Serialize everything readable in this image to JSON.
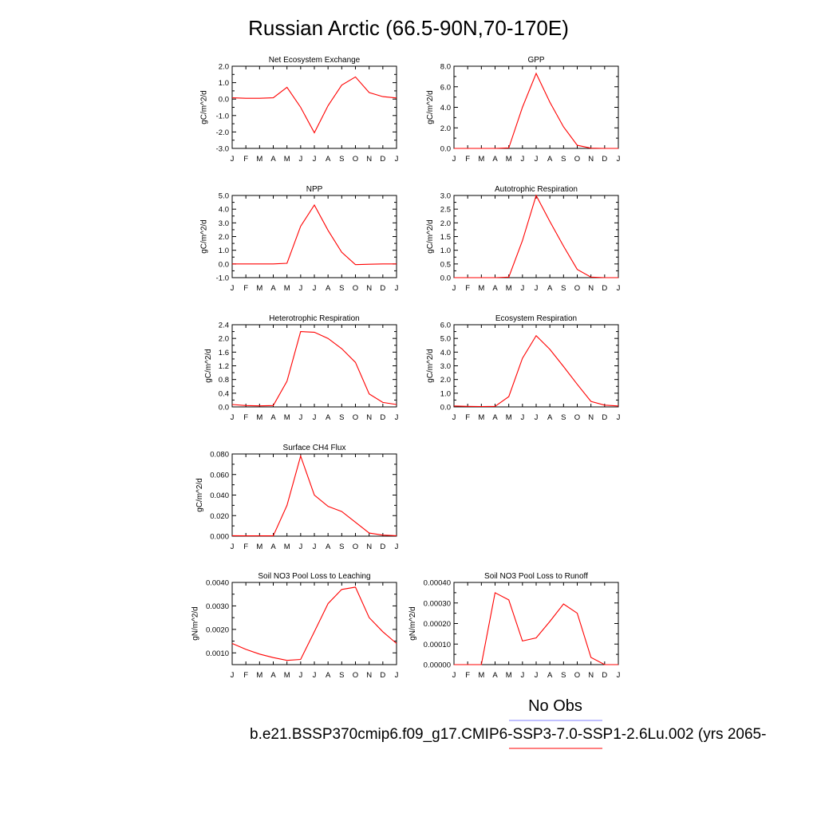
{
  "figure_title": "Russian Arctic (66.5-90N,70-170E)",
  "legend": {
    "obs_label": "No Obs",
    "obs_color": "#8080ff",
    "case_label": "b.e21.BSSP370cmip6.f09_g17.CMIP6-SSP3-7.0-SSP1-2.6Lu.002 (yrs 2065-",
    "case_color": "#ff0000"
  },
  "chart_data": [
    {
      "type": "line",
      "title": "Net Ecosystem Exchange",
      "ylabel": "gC/m^2/d",
      "ylim": [
        -3.0,
        2.0
      ],
      "yticks": [
        "-3.0",
        "-2.0",
        "-1.0",
        "0.0",
        "1.0",
        "2.0"
      ],
      "ytick_values": [
        -3,
        -2,
        -1,
        0,
        1,
        2
      ],
      "x": [
        "J",
        "F",
        "M",
        "A",
        "M",
        "J",
        "J",
        "A",
        "S",
        "O",
        "N",
        "D",
        "J"
      ],
      "series": [
        {
          "values": [
            0.08,
            0.05,
            0.05,
            0.08,
            0.72,
            -0.5,
            -2.05,
            -0.4,
            0.85,
            1.35,
            0.4,
            0.15,
            0.07
          ],
          "color": "#ff0000"
        }
      ]
    },
    {
      "type": "line",
      "title": "GPP",
      "ylabel": "gC/m^2/d",
      "ylim": [
        0.0,
        8.0
      ],
      "yticks": [
        "0.0",
        "2.0",
        "4.0",
        "6.0",
        "8.0"
      ],
      "ytick_values": [
        0,
        2,
        4,
        6,
        8
      ],
      "x": [
        "J",
        "F",
        "M",
        "A",
        "M",
        "J",
        "J",
        "A",
        "S",
        "O",
        "N",
        "D",
        "J"
      ],
      "series": [
        {
          "values": [
            0.0,
            0.0,
            0.0,
            0.0,
            0.05,
            4.0,
            7.3,
            4.5,
            2.1,
            0.3,
            0.02,
            0.0,
            0.0
          ],
          "color": "#ff0000"
        }
      ]
    },
    {
      "type": "line",
      "title": "NPP",
      "ylabel": "gC/m^2/d",
      "ylim": [
        -1.0,
        5.0
      ],
      "yticks": [
        "-1.0",
        "0.0",
        "1.0",
        "2.0",
        "3.0",
        "4.0",
        "5.0"
      ],
      "ytick_values": [
        -1,
        0,
        1,
        2,
        3,
        4,
        5
      ],
      "x": [
        "J",
        "F",
        "M",
        "A",
        "M",
        "J",
        "J",
        "A",
        "S",
        "O",
        "N",
        "D",
        "J"
      ],
      "series": [
        {
          "values": [
            0.0,
            0.0,
            0.0,
            0.0,
            0.05,
            2.75,
            4.3,
            2.45,
            0.85,
            -0.05,
            -0.02,
            0.0,
            0.0
          ],
          "color": "#ff0000"
        }
      ]
    },
    {
      "type": "line",
      "title": "Autotrophic Respiration",
      "ylabel": "gC/m^2/d",
      "ylim": [
        0.0,
        3.0
      ],
      "yticks": [
        "0.0",
        "0.5",
        "1.0",
        "1.5",
        "2.0",
        "2.5",
        "3.0"
      ],
      "ytick_values": [
        0,
        0.5,
        1,
        1.5,
        2,
        2.5,
        3
      ],
      "x": [
        "J",
        "F",
        "M",
        "A",
        "M",
        "J",
        "J",
        "A",
        "S",
        "O",
        "N",
        "D",
        "J"
      ],
      "series": [
        {
          "values": [
            0.0,
            0.0,
            0.0,
            0.0,
            0.02,
            1.35,
            3.0,
            2.05,
            1.15,
            0.3,
            0.02,
            0.0,
            0.0
          ],
          "color": "#ff0000"
        }
      ]
    },
    {
      "type": "line",
      "title": "Heterotrophic Respiration",
      "ylabel": "gC/m^2/d",
      "ylim": [
        0.0,
        2.4
      ],
      "yticks": [
        "0.0",
        "0.4",
        "0.8",
        "1.2",
        "1.6",
        "2.0",
        "2.4"
      ],
      "ytick_values": [
        0,
        0.4,
        0.8,
        1.2,
        1.6,
        2.0,
        2.4
      ],
      "x": [
        "J",
        "F",
        "M",
        "A",
        "M",
        "J",
        "J",
        "A",
        "S",
        "O",
        "N",
        "D",
        "J"
      ],
      "series": [
        {
          "values": [
            0.07,
            0.04,
            0.03,
            0.04,
            0.75,
            2.2,
            2.18,
            2.0,
            1.7,
            1.3,
            0.38,
            0.13,
            0.07
          ],
          "color": "#ff0000"
        }
      ]
    },
    {
      "type": "line",
      "title": "Ecosystem Respiration",
      "ylabel": "gC/m^2/d",
      "ylim": [
        0.0,
        6.0
      ],
      "yticks": [
        "0.0",
        "1.0",
        "2.0",
        "3.0",
        "4.0",
        "5.0",
        "6.0"
      ],
      "ytick_values": [
        0,
        1,
        2,
        3,
        4,
        5,
        6
      ],
      "x": [
        "J",
        "F",
        "M",
        "A",
        "M",
        "J",
        "J",
        "A",
        "S",
        "O",
        "N",
        "D",
        "J"
      ],
      "series": [
        {
          "values": [
            0.07,
            0.04,
            0.03,
            0.04,
            0.75,
            3.55,
            5.2,
            4.2,
            2.95,
            1.65,
            0.4,
            0.13,
            0.07
          ],
          "color": "#ff0000"
        }
      ]
    },
    {
      "type": "line",
      "title": "Surface CH4 Flux",
      "ylabel": "gC/m^2/d",
      "ylim": [
        0.0,
        0.08
      ],
      "yticks": [
        "0.000",
        "0.020",
        "0.040",
        "0.060",
        "0.080"
      ],
      "ytick_values": [
        0,
        0.02,
        0.04,
        0.06,
        0.08
      ],
      "x": [
        "J",
        "F",
        "M",
        "A",
        "M",
        "J",
        "J",
        "A",
        "S",
        "O",
        "N",
        "D",
        "J"
      ],
      "series": [
        {
          "values": [
            0.0005,
            0.0003,
            0.0003,
            0.0003,
            0.03,
            0.078,
            0.04,
            0.029,
            0.024,
            0.0135,
            0.003,
            0.001,
            0.0005
          ],
          "color": "#ff0000"
        }
      ]
    },
    {
      "type": "line",
      "title": "Soil NO3 Pool Loss to Leaching",
      "ylabel": "gN/m^2/d",
      "ylim": [
        0.0005,
        0.004
      ],
      "yticks": [
        "0.0010",
        "0.0020",
        "0.0030",
        "0.0040"
      ],
      "ytick_values": [
        0.001,
        0.002,
        0.003,
        0.004
      ],
      "x": [
        "J",
        "F",
        "M",
        "A",
        "M",
        "J",
        "J",
        "A",
        "S",
        "O",
        "N",
        "D",
        "J"
      ],
      "series": [
        {
          "values": [
            0.0014,
            0.00115,
            0.00095,
            0.0008,
            0.00068,
            0.00072,
            0.0019,
            0.0031,
            0.0037,
            0.0038,
            0.0025,
            0.0019,
            0.0014
          ],
          "color": "#ff0000"
        }
      ]
    },
    {
      "type": "line",
      "title": "Soil NO3 Pool Loss to Runoff",
      "ylabel": "gN/m^2/d",
      "ylim": [
        0.0,
        0.0004
      ],
      "yticks": [
        "0.00000",
        "0.00010",
        "0.00020",
        "0.00030",
        "0.00040"
      ],
      "ytick_values": [
        0,
        0.0001,
        0.0002,
        0.0003,
        0.0004
      ],
      "x": [
        "J",
        "F",
        "M",
        "A",
        "M",
        "J",
        "J",
        "A",
        "S",
        "O",
        "N",
        "D",
        "J"
      ],
      "series": [
        {
          "values": [
            0.0,
            0.0,
            0.0,
            0.00035,
            0.000315,
            0.000115,
            0.00013,
            0.00021,
            0.000295,
            0.00025,
            3.5e-05,
            0.0,
            0.0
          ],
          "color": "#ff0000"
        }
      ]
    }
  ]
}
